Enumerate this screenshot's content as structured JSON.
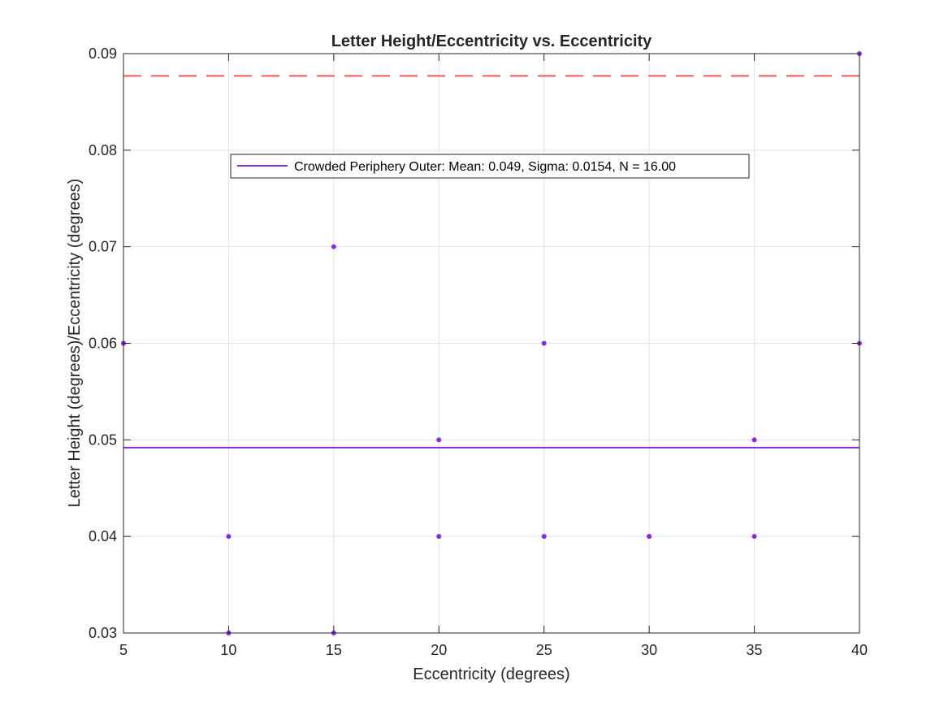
{
  "chart_data": {
    "type": "scatter",
    "title": "Letter Height/Eccentricity vs. Eccentricity",
    "xlabel": "Eccentricity (degrees)",
    "ylabel": "Letter Height (degrees)/Eccentricity (degrees)",
    "xlim": [
      5,
      40
    ],
    "ylim": [
      0.03,
      0.09
    ],
    "xticks": [
      5,
      10,
      15,
      20,
      25,
      30,
      35,
      40
    ],
    "yticks": [
      0.03,
      0.04,
      0.05,
      0.06,
      0.07,
      0.08,
      0.09
    ],
    "xtick_labels": [
      "5",
      "10",
      "15",
      "20",
      "25",
      "30",
      "35",
      "40"
    ],
    "ytick_labels": [
      "0.03",
      "0.04",
      "0.05",
      "0.06",
      "0.07",
      "0.08",
      "0.09"
    ],
    "grid": true,
    "legend_position": "upper-center",
    "series": [
      {
        "name": "Crowded Periphery Outer: Mean: 0.049, Sigma: 0.0154, N = 16.00",
        "color": "#8a2be2",
        "points": [
          {
            "x": 5,
            "y": 0.06
          },
          {
            "x": 10,
            "y": 0.04
          },
          {
            "x": 10,
            "y": 0.03
          },
          {
            "x": 15,
            "y": 0.07
          },
          {
            "x": 15,
            "y": 0.03
          },
          {
            "x": 20,
            "y": 0.05
          },
          {
            "x": 20,
            "y": 0.04
          },
          {
            "x": 25,
            "y": 0.06
          },
          {
            "x": 25,
            "y": 0.04
          },
          {
            "x": 30,
            "y": 0.04
          },
          {
            "x": 30,
            "y": 0.04
          },
          {
            "x": 35,
            "y": 0.05
          },
          {
            "x": 35,
            "y": 0.04
          },
          {
            "x": 40,
            "y": 0.09
          },
          {
            "x": 40,
            "y": 0.06
          },
          {
            "x": 5,
            "y": 0.06
          }
        ]
      }
    ],
    "reference_lines": [
      {
        "y": 0.0492,
        "color": "#8a2be2",
        "style": "solid"
      },
      {
        "y": 0.0877,
        "color": "#f05a5a",
        "style": "dashed"
      }
    ]
  }
}
